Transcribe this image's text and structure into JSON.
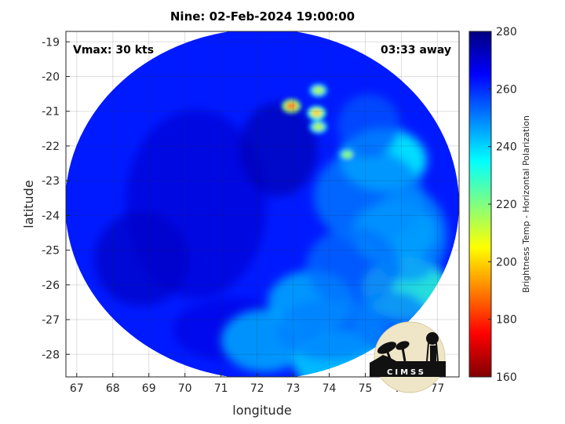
{
  "chart_data": {
    "type": "heatmap",
    "title": "Nine: 02-Feb-2024 19:00:00",
    "xlabel": "longitude",
    "ylabel": "latitude",
    "xlim": [
      66.7,
      77.6
    ],
    "ylim": [
      -28.65,
      -18.7
    ],
    "xticks": [
      67,
      68,
      69,
      70,
      71,
      72,
      73,
      74,
      75,
      76,
      77
    ],
    "yticks": [
      -19,
      -20,
      -21,
      -22,
      -23,
      -24,
      -25,
      -26,
      -27,
      -28
    ],
    "grid": true,
    "colorbar": {
      "label": "Brightness Temp - Horizontal Polarization",
      "range": [
        160,
        280
      ],
      "ticks": [
        280,
        260,
        240,
        220,
        200,
        180,
        160
      ],
      "colormap": "jet",
      "colors": [
        "#800000",
        "#ff0000",
        "#ff8000",
        "#ffff00",
        "#80ff80",
        "#00ffff",
        "#0080ff",
        "#0000ff",
        "#000080"
      ]
    },
    "annotations": {
      "vmax": "Vmax: 30 kts",
      "time_away": "03:33 away"
    },
    "logo": "CIMSS",
    "features": {
      "background_value": 262,
      "cold_spots": [
        {
          "lon": 72.95,
          "lat": -20.85,
          "value": 190
        },
        {
          "lon": 73.65,
          "lat": -21.05,
          "value": 200
        },
        {
          "lon": 73.7,
          "lat": -20.4,
          "value": 215
        },
        {
          "lon": 73.7,
          "lat": -21.45,
          "value": 215
        },
        {
          "lon": 74.5,
          "lat": -22.25,
          "value": 220
        }
      ],
      "moderate_regions": [
        {
          "lon": 75.5,
          "lat": -22.4,
          "value": 235
        },
        {
          "lon": 75.8,
          "lat": -24.5,
          "value": 240
        },
        {
          "lon": 76.1,
          "lat": -26.1,
          "value": 230
        },
        {
          "lon": 73.5,
          "lat": -26.5,
          "value": 245
        },
        {
          "lon": 72.2,
          "lat": -27.6,
          "value": 245
        },
        {
          "lon": 74.2,
          "lat": -28.2,
          "value": 240
        }
      ]
    }
  }
}
